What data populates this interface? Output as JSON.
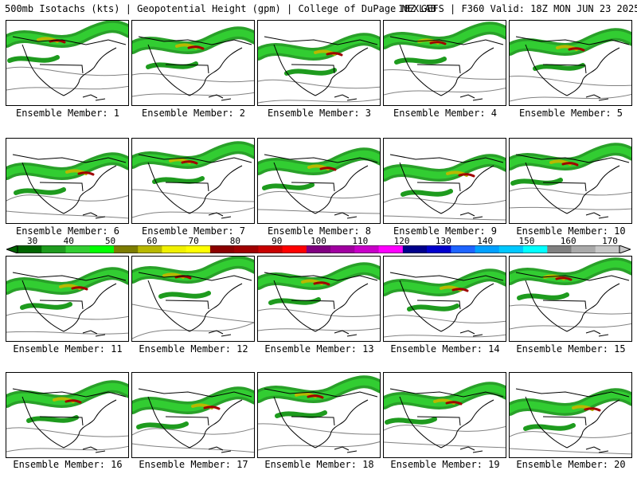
{
  "header": {
    "left": "500mb Isotachs (kts) | Geopotential Height (gpm) | College of DuPage NEXLAB",
    "right": "18Z GEFS | F360 Valid: 18Z MON JUN 23 2025"
  },
  "colorbar": {
    "ticks": [
      "30",
      "40",
      "50",
      "60",
      "70",
      "80",
      "90",
      "100",
      "110",
      "120",
      "130",
      "140",
      "150",
      "160",
      "170"
    ],
    "colors": [
      "#006400",
      "#1e9b1e",
      "#32cd32",
      "#00ff00",
      "#7c7c00",
      "#b8b800",
      "#f0f000",
      "#ffff00",
      "#8b0000",
      "#a00000",
      "#c80000",
      "#ff0000",
      "#800080",
      "#a000a0",
      "#c800c8",
      "#ff00ff",
      "#00008b",
      "#0000cd",
      "#1e64ff",
      "#00a0ff",
      "#00c8ff",
      "#00ffff",
      "#808080",
      "#a9a9a9",
      "#c8c8c8"
    ]
  },
  "members": [
    {
      "label": "Ensemble Member: 1"
    },
    {
      "label": "Ensemble Member: 2"
    },
    {
      "label": "Ensemble Member: 3"
    },
    {
      "label": "Ensemble Member: 4"
    },
    {
      "label": "Ensemble Member: 5"
    },
    {
      "label": "Ensemble Member: 6"
    },
    {
      "label": "Ensemble Member: 7"
    },
    {
      "label": "Ensemble Member: 8"
    },
    {
      "label": "Ensemble Member: 9"
    },
    {
      "label": "Ensemble Member: 10"
    },
    {
      "label": "Ensemble Member: 11"
    },
    {
      "label": "Ensemble Member: 12"
    },
    {
      "label": "Ensemble Member: 13"
    },
    {
      "label": "Ensemble Member: 14"
    },
    {
      "label": "Ensemble Member: 15"
    },
    {
      "label": "Ensemble Member: 16"
    },
    {
      "label": "Ensemble Member: 17"
    },
    {
      "label": "Ensemble Member: 18"
    },
    {
      "label": "Ensemble Member: 19"
    },
    {
      "label": "Ensemble Member: 20"
    }
  ]
}
